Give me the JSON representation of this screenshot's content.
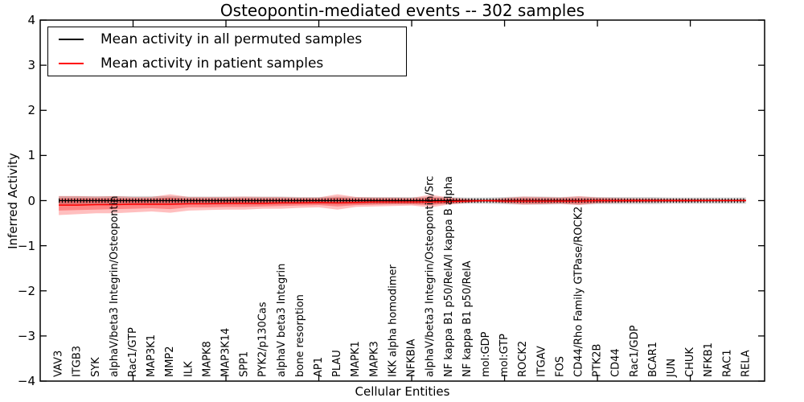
{
  "title": "Osteopontin-mediated events -- 302 samples",
  "axes": {
    "xlabel": "Cellular Entities",
    "ylabel": "Inferred Activity",
    "y_ticks": [
      4,
      3,
      2,
      1,
      0,
      -1,
      -2,
      -3,
      -4
    ],
    "x_tick_values": [
      5,
      10,
      15,
      20,
      25,
      30,
      35
    ],
    "ylim": [
      -4,
      4
    ],
    "xlim": [
      0,
      39
    ]
  },
  "legend": {
    "items": [
      {
        "label": "Mean activity in all permuted samples",
        "color": "#000000"
      },
      {
        "label": "Mean activity in patient samples",
        "color": "#ff0000"
      }
    ]
  },
  "colors": {
    "background": "#ffffff",
    "axis": "#000000",
    "patient_line": "#ff0000",
    "permuted_line": "#000000",
    "patient_band": "#ff0000",
    "permuted_band": "#999999"
  },
  "chart_data": {
    "type": "line",
    "title": "Osteopontin-mediated events -- 302 samples",
    "xlabel": "Cellular Entities",
    "ylabel": "Inferred Activity",
    "ylim": [
      -4,
      4
    ],
    "grid": false,
    "legend_position": "upper left",
    "categories": [
      "VAV3",
      "ITGB3",
      "SYK",
      "alphaV/beta3 Integrin/Osteopontin",
      "Rac1/GTP",
      "MAP3K1",
      "MMP2",
      "ILK",
      "MAPK8",
      "MAP3K14",
      "SPP1",
      "PYK2/p130Cas",
      "alphaV beta3 Integrin",
      "bone resorption",
      "AP1",
      "PLAU",
      "MAPK1",
      "MAPK3",
      "IKK alpha homodimer",
      "NFKBIA",
      "alphaV/beta3 Integrin/Osteopontin/Src",
      "NF kappa B1 p50/RelA/I kappa B alpha",
      "NF kappa B1 p50/RelA",
      "mol:GDP",
      "mol:GTP",
      "ROCK2",
      "ITGAV",
      "FOS",
      "CD44/Rho Family GTPase/ROCK2",
      "PTK2B",
      "CD44",
      "Rac1/GDP",
      "BCAR1",
      "JUN",
      "CHUK",
      "NFKB1",
      "RAC1",
      "RELA"
    ],
    "series": [
      {
        "name": "Mean activity in all permuted samples",
        "color": "#000000",
        "values": [
          0,
          0,
          0,
          0,
          0,
          0,
          0,
          0,
          0,
          0,
          0,
          0,
          0,
          0,
          0,
          0,
          0,
          0,
          0,
          0,
          0,
          0,
          0,
          0,
          0,
          0,
          0,
          0,
          0,
          0,
          0,
          0,
          0,
          0,
          0,
          0,
          0,
          0
        ]
      },
      {
        "name": "Mean activity in patient samples",
        "color": "#ff0000",
        "values": [
          -0.1,
          -0.1,
          -0.09,
          -0.09,
          -0.08,
          -0.08,
          -0.08,
          -0.07,
          -0.07,
          -0.06,
          -0.06,
          -0.06,
          -0.05,
          -0.05,
          -0.04,
          -0.05,
          -0.04,
          -0.03,
          -0.03,
          -0.03,
          -0.03,
          -0.02,
          -0.01,
          0.0,
          -0.01,
          -0.01,
          -0.01,
          -0.01,
          -0.01,
          0.0,
          0.0,
          0.0,
          0.0,
          0.0,
          0.0,
          0.0,
          0.0,
          0.0
        ]
      }
    ],
    "bands": [
      {
        "name": "permuted-samples-range",
        "color": "#999999",
        "opacity": 0.4,
        "upper": [
          0.1,
          0.1,
          0.1,
          0.1,
          0.1,
          0.1,
          0.1,
          0.09,
          0.09,
          0.09,
          0.09,
          0.09,
          0.09,
          0.08,
          0.08,
          0.09,
          0.08,
          0.08,
          0.08,
          0.08,
          0.08,
          0.08,
          0.07,
          0.07,
          0.08,
          0.09,
          0.09,
          0.08,
          0.09,
          0.08,
          0.08,
          0.08,
          0.08,
          0.07,
          0.07,
          0.07,
          0.07,
          0.07
        ],
        "lower": [
          -0.1,
          -0.1,
          -0.1,
          -0.1,
          -0.1,
          -0.1,
          -0.1,
          -0.09,
          -0.09,
          -0.09,
          -0.09,
          -0.09,
          -0.09,
          -0.08,
          -0.08,
          -0.09,
          -0.08,
          -0.08,
          -0.08,
          -0.08,
          -0.08,
          -0.08,
          -0.07,
          -0.07,
          -0.08,
          -0.09,
          -0.09,
          -0.08,
          -0.09,
          -0.08,
          -0.08,
          -0.08,
          -0.08,
          -0.07,
          -0.07,
          -0.07,
          -0.07,
          -0.07
        ]
      },
      {
        "name": "patient-samples-range-outer",
        "color": "#ff0000",
        "opacity": 0.25,
        "upper": [
          0.1,
          0.1,
          0.09,
          0.1,
          0.08,
          0.08,
          0.14,
          0.08,
          0.08,
          0.08,
          0.09,
          0.08,
          0.08,
          0.07,
          0.07,
          0.14,
          0.08,
          0.07,
          0.07,
          0.06,
          0.13,
          0.07,
          0.04,
          0.02,
          0.06,
          0.09,
          0.08,
          0.07,
          0.1,
          0.07,
          0.06,
          0.05,
          0.05,
          0.04,
          0.04,
          0.03,
          0.03,
          0.03
        ],
        "lower": [
          -0.32,
          -0.3,
          -0.28,
          -0.28,
          -0.26,
          -0.24,
          -0.27,
          -0.22,
          -0.21,
          -0.2,
          -0.2,
          -0.18,
          -0.18,
          -0.16,
          -0.15,
          -0.2,
          -0.14,
          -0.13,
          -0.12,
          -0.11,
          -0.15,
          -0.09,
          -0.05,
          -0.02,
          -0.06,
          -0.09,
          -0.08,
          -0.07,
          -0.1,
          -0.06,
          -0.05,
          -0.04,
          -0.04,
          -0.03,
          -0.03,
          -0.02,
          -0.02,
          -0.02
        ]
      },
      {
        "name": "patient-samples-range-inner",
        "color": "#ff0000",
        "opacity": 0.3,
        "upper": [
          0.05,
          0.05,
          0.05,
          0.05,
          0.04,
          0.04,
          0.07,
          0.04,
          0.04,
          0.04,
          0.05,
          0.04,
          0.04,
          0.04,
          0.04,
          0.07,
          0.04,
          0.04,
          0.04,
          0.03,
          0.07,
          0.04,
          0.02,
          0.01,
          0.03,
          0.05,
          0.04,
          0.04,
          0.05,
          0.04,
          0.03,
          0.03,
          0.03,
          0.02,
          0.02,
          0.02,
          0.02,
          0.02
        ],
        "lower": [
          -0.22,
          -0.21,
          -0.2,
          -0.19,
          -0.18,
          -0.17,
          -0.19,
          -0.15,
          -0.15,
          -0.14,
          -0.14,
          -0.13,
          -0.12,
          -0.11,
          -0.1,
          -0.13,
          -0.1,
          -0.09,
          -0.08,
          -0.08,
          -0.1,
          -0.06,
          -0.04,
          -0.01,
          -0.04,
          -0.06,
          -0.06,
          -0.05,
          -0.07,
          -0.04,
          -0.03,
          -0.03,
          -0.02,
          -0.02,
          -0.02,
          -0.01,
          -0.01,
          -0.01
        ]
      }
    ]
  }
}
